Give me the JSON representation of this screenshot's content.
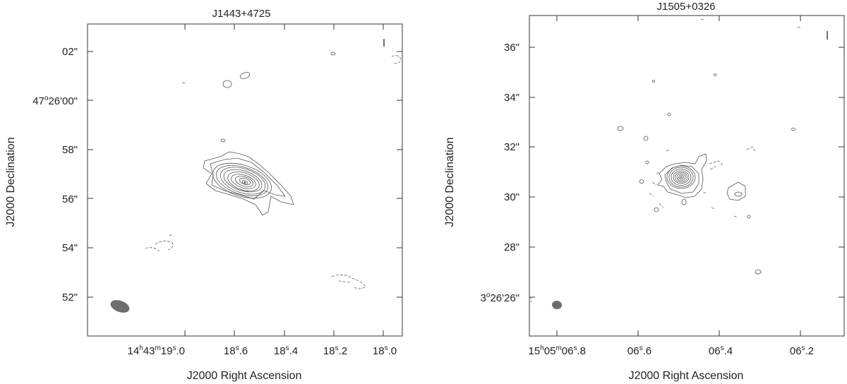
{
  "chart_data": [
    {
      "type": "contour",
      "title": "J1443+4725",
      "xlabel": "J2000 Right Ascension",
      "ylabel": "J2000 Declination",
      "x_ticks": [
        {
          "h": "14",
          "m": "43",
          "s": "19",
          "frac": ".0"
        },
        {
          "s": "18",
          "frac": ".6"
        },
        {
          "s": "18",
          "frac": ".4"
        },
        {
          "s": "18",
          "frac": ".2"
        },
        {
          "s": "18",
          "frac": ".0"
        }
      ],
      "y_ticks": [
        {
          "sec": "02\""
        },
        {
          "deg": "47",
          "rest": "26'00\""
        },
        {
          "sec": "58\""
        },
        {
          "sec": "56\""
        },
        {
          "sec": "54\""
        },
        {
          "sec": "52\""
        }
      ],
      "source_peak": {
        "ra_s": 18.56,
        "dec_arcsec": 56.6
      },
      "positive_contour_levels": 12,
      "beam": "filled ellipse, lower-left"
    },
    {
      "type": "contour",
      "title": "J1505+0326",
      "xlabel": "J2000 Right Ascension",
      "ylabel": "J2000 Declination",
      "x_ticks": [
        {
          "h": "15",
          "m": "05",
          "s": "06",
          "frac": ".8"
        },
        {
          "s": "06",
          "frac": ".6"
        },
        {
          "s": "06",
          "frac": ".4"
        },
        {
          "s": "06",
          "frac": ".2"
        }
      ],
      "y_ticks": [
        {
          "sec": "36\""
        },
        {
          "sec": "34\""
        },
        {
          "sec": "32\""
        },
        {
          "sec": "30\""
        },
        {
          "sec": "28\""
        },
        {
          "deg": "3",
          "rest": "26'26\""
        }
      ],
      "source_peak": {
        "ra_s": 6.48,
        "dec_arcsec": 30.8
      },
      "positive_contour_levels": 10,
      "beam": "filled ellipse, lower-left"
    }
  ],
  "colors": {
    "contour": "#555555",
    "beam": "#6d6d6d",
    "frame": "#333333"
  }
}
